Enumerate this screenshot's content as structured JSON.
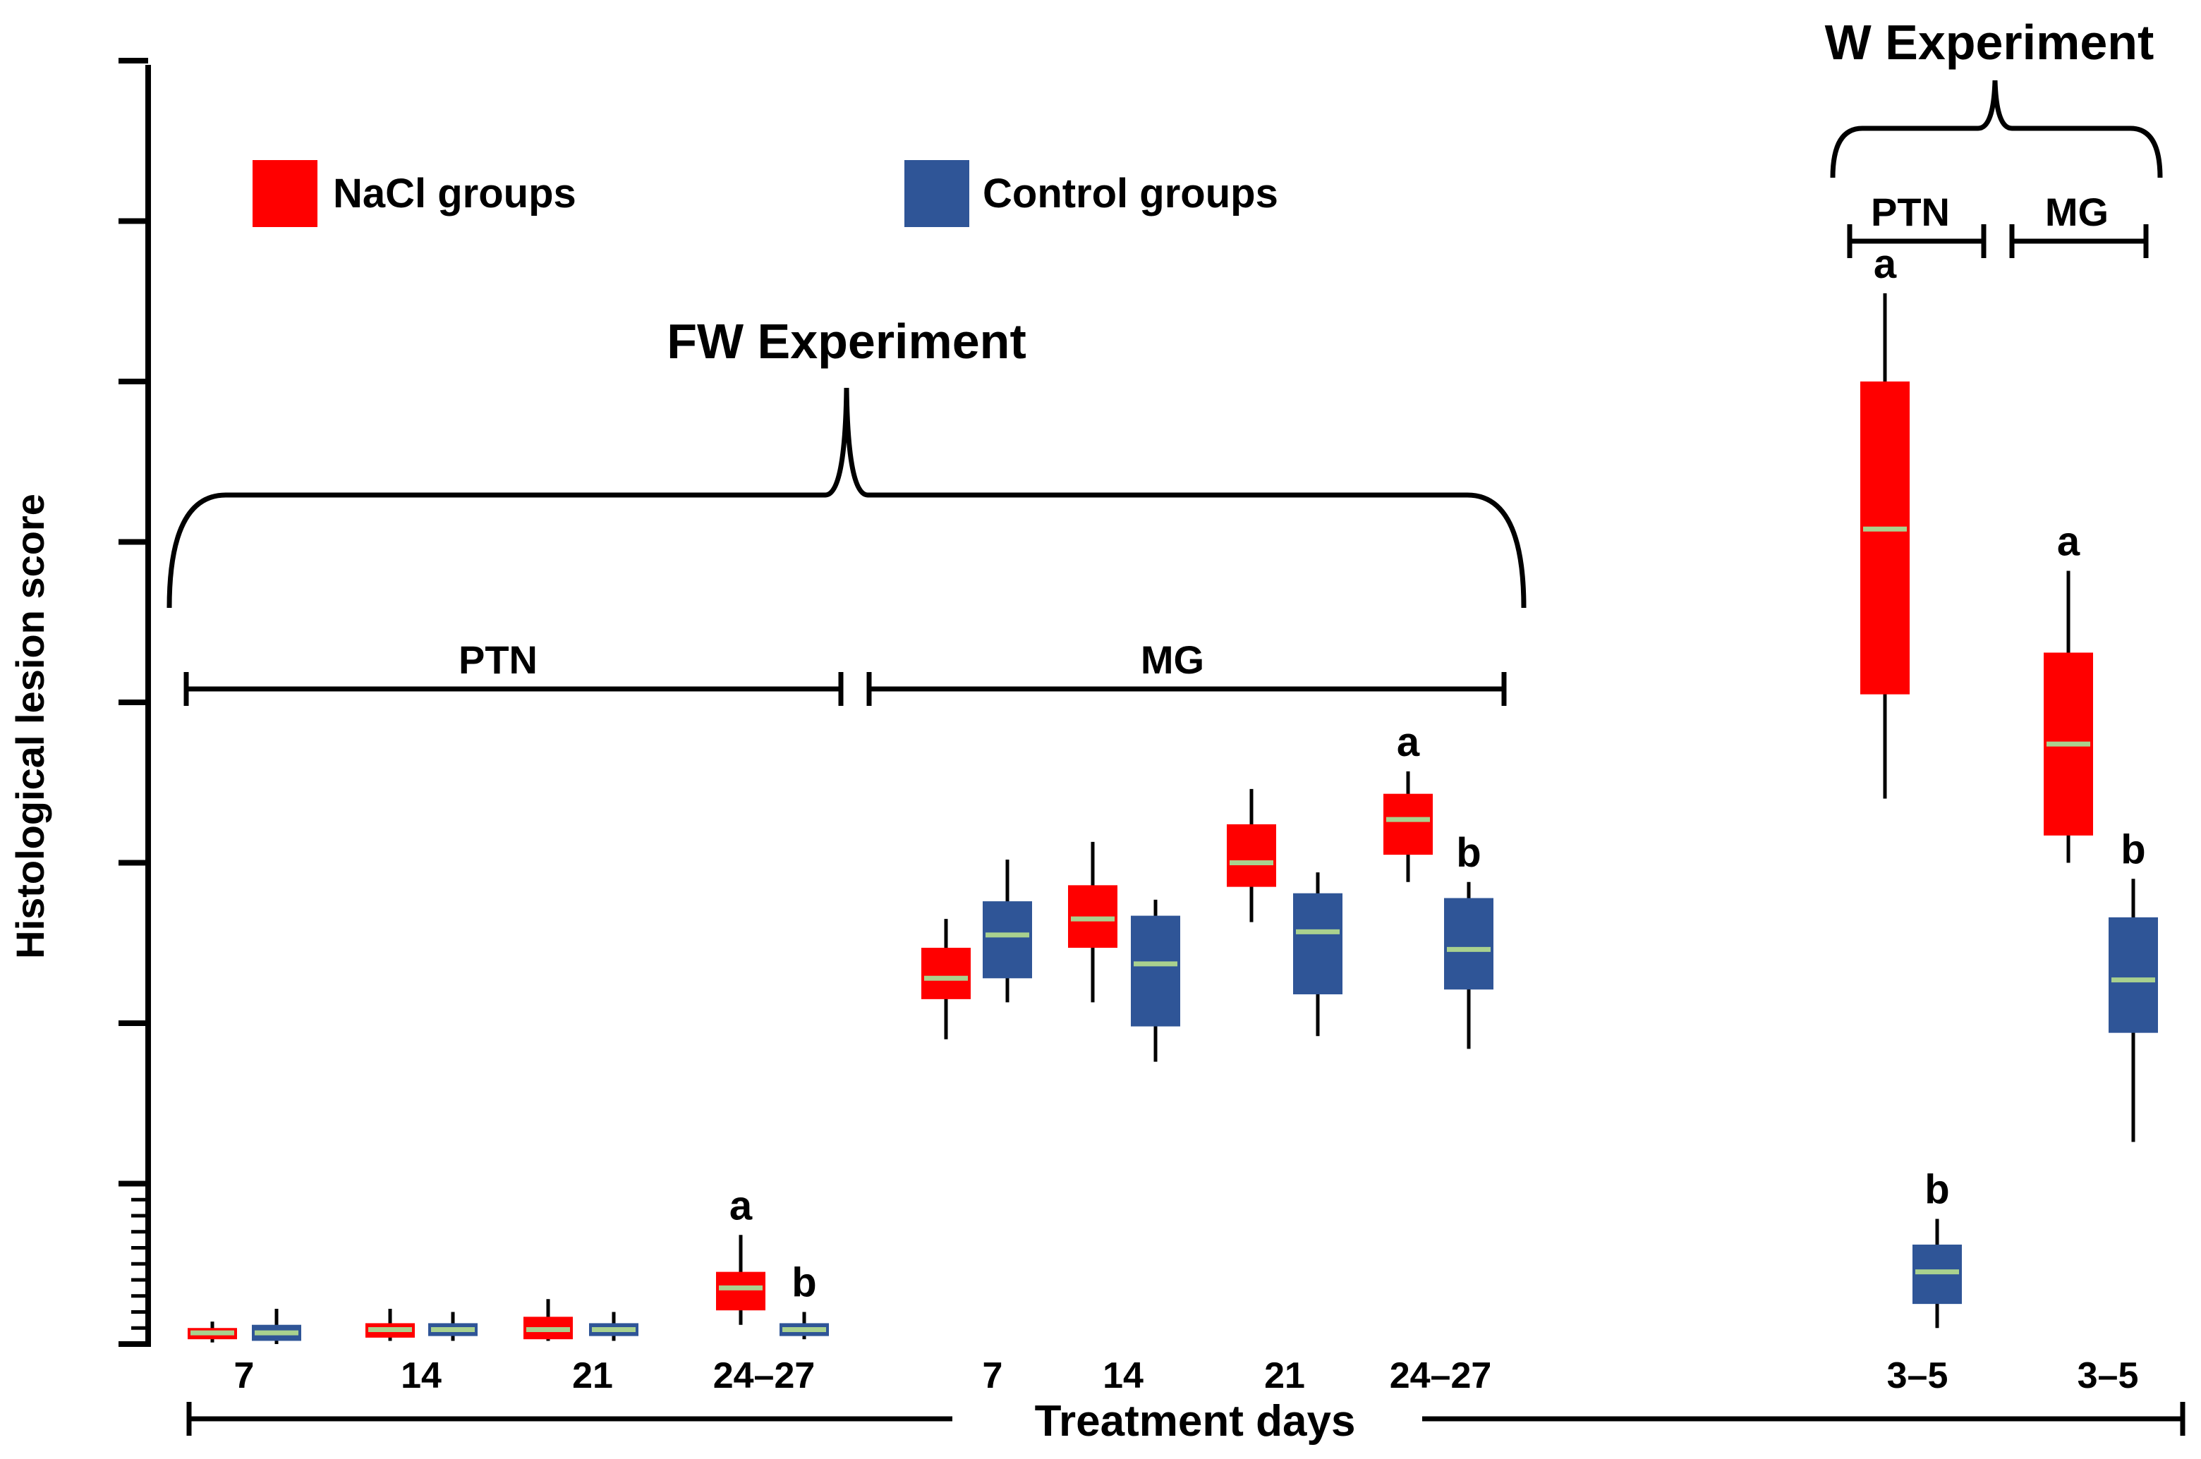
{
  "chart_data": {
    "type": "box",
    "ylabel": "Histological lesion score",
    "xlabel": "Treatment days",
    "ylim": [
      0,
      8
    ],
    "yticks_major": [
      0,
      1,
      2,
      3,
      4,
      5,
      6,
      7,
      8
    ],
    "yticks_minor": [
      0.1,
      0.2,
      0.3,
      0.4,
      0.5,
      0.6,
      0.7,
      0.8,
      0.9
    ],
    "legend": [
      {
        "label": "NaCl groups",
        "color": "#ff0000"
      },
      {
        "label": "Control groups",
        "color": "#2f5597"
      }
    ],
    "median_color": "#a9d18e",
    "experiments": {
      "fw": {
        "title": "FW Experiment",
        "groups": {
          "ptn": "PTN",
          "mg": "MG"
        }
      },
      "w": {
        "title": "W Experiment",
        "groups": {
          "ptn": "PTN",
          "mg": "MG"
        }
      }
    },
    "series": [
      {
        "name": "NaCl groups",
        "experiment": "FW",
        "group": "PTN",
        "day": "7",
        "min": 0.01,
        "q1": 0.03,
        "median": 0.07,
        "q3": 0.1,
        "max": 0.14,
        "label": ""
      },
      {
        "name": "Control groups",
        "experiment": "FW",
        "group": "PTN",
        "day": "7",
        "min": 0.0,
        "q1": 0.02,
        "median": 0.07,
        "q3": 0.12,
        "max": 0.22,
        "label": ""
      },
      {
        "name": "NaCl groups",
        "experiment": "FW",
        "group": "PTN",
        "day": "14",
        "min": 0.02,
        "q1": 0.04,
        "median": 0.09,
        "q3": 0.13,
        "max": 0.22,
        "label": ""
      },
      {
        "name": "Control groups",
        "experiment": "FW",
        "group": "PTN",
        "day": "14",
        "min": 0.02,
        "q1": 0.05,
        "median": 0.09,
        "q3": 0.13,
        "max": 0.2,
        "label": ""
      },
      {
        "name": "NaCl groups",
        "experiment": "FW",
        "group": "PTN",
        "day": "21",
        "min": 0.02,
        "q1": 0.03,
        "median": 0.09,
        "q3": 0.17,
        "max": 0.28,
        "label": ""
      },
      {
        "name": "Control groups",
        "experiment": "FW",
        "group": "PTN",
        "day": "21",
        "min": 0.02,
        "q1": 0.05,
        "median": 0.09,
        "q3": 0.13,
        "max": 0.2,
        "label": ""
      },
      {
        "name": "NaCl groups",
        "experiment": "FW",
        "group": "PTN",
        "day": "24–27",
        "min": 0.12,
        "q1": 0.21,
        "median": 0.35,
        "q3": 0.45,
        "max": 0.68,
        "label": "a"
      },
      {
        "name": "Control groups",
        "experiment": "FW",
        "group": "PTN",
        "day": "24–27",
        "min": 0.03,
        "q1": 0.05,
        "median": 0.09,
        "q3": 0.13,
        "max": 0.2,
        "label": "b"
      },
      {
        "name": "NaCl groups",
        "experiment": "FW",
        "group": "MG",
        "day": "7",
        "min": 1.9,
        "q1": 2.15,
        "median": 2.28,
        "q3": 2.47,
        "max": 2.65,
        "label": ""
      },
      {
        "name": "Control groups",
        "experiment": "FW",
        "group": "MG",
        "day": "7",
        "min": 2.13,
        "q1": 2.28,
        "median": 2.55,
        "q3": 2.76,
        "max": 3.02,
        "label": ""
      },
      {
        "name": "NaCl groups",
        "experiment": "FW",
        "group": "MG",
        "day": "14",
        "min": 2.13,
        "q1": 2.47,
        "median": 2.65,
        "q3": 2.86,
        "max": 3.13,
        "label": ""
      },
      {
        "name": "Control groups",
        "experiment": "FW",
        "group": "MG",
        "day": "14",
        "min": 1.76,
        "q1": 1.98,
        "median": 2.37,
        "q3": 2.67,
        "max": 2.77,
        "label": ""
      },
      {
        "name": "NaCl groups",
        "experiment": "FW",
        "group": "MG",
        "day": "21",
        "min": 2.63,
        "q1": 2.85,
        "median": 3.0,
        "q3": 3.24,
        "max": 3.46,
        "label": ""
      },
      {
        "name": "Control groups",
        "experiment": "FW",
        "group": "MG",
        "day": "21",
        "min": 1.92,
        "q1": 2.18,
        "median": 2.57,
        "q3": 2.81,
        "max": 2.94,
        "label": ""
      },
      {
        "name": "NaCl groups",
        "experiment": "FW",
        "group": "MG",
        "day": "24–27",
        "min": 2.88,
        "q1": 3.05,
        "median": 3.27,
        "q3": 3.43,
        "max": 3.57,
        "label": "a"
      },
      {
        "name": "Control groups",
        "experiment": "FW",
        "group": "MG",
        "day": "24–27",
        "min": 1.84,
        "q1": 2.21,
        "median": 2.46,
        "q3": 2.78,
        "max": 2.88,
        "label": "b"
      },
      {
        "name": "NaCl groups",
        "experiment": "W",
        "group": "PTN",
        "day": "3–5",
        "min": 3.4,
        "q1": 4.05,
        "median": 5.08,
        "q3": 6.0,
        "max": 6.55,
        "label": "a"
      },
      {
        "name": "Control groups",
        "experiment": "W",
        "group": "PTN",
        "day": "3–5",
        "min": 0.1,
        "q1": 0.25,
        "median": 0.45,
        "q3": 0.62,
        "max": 0.78,
        "label": "b"
      },
      {
        "name": "NaCl groups",
        "experiment": "W",
        "group": "MG",
        "day": "3–5",
        "min": 3.0,
        "q1": 3.17,
        "median": 3.74,
        "q3": 4.31,
        "max": 4.82,
        "label": "a"
      },
      {
        "name": "Control groups",
        "experiment": "W",
        "group": "MG",
        "day": "3–5",
        "min": 1.26,
        "q1": 1.94,
        "median": 2.27,
        "q3": 2.66,
        "max": 2.9,
        "label": "b"
      }
    ]
  }
}
